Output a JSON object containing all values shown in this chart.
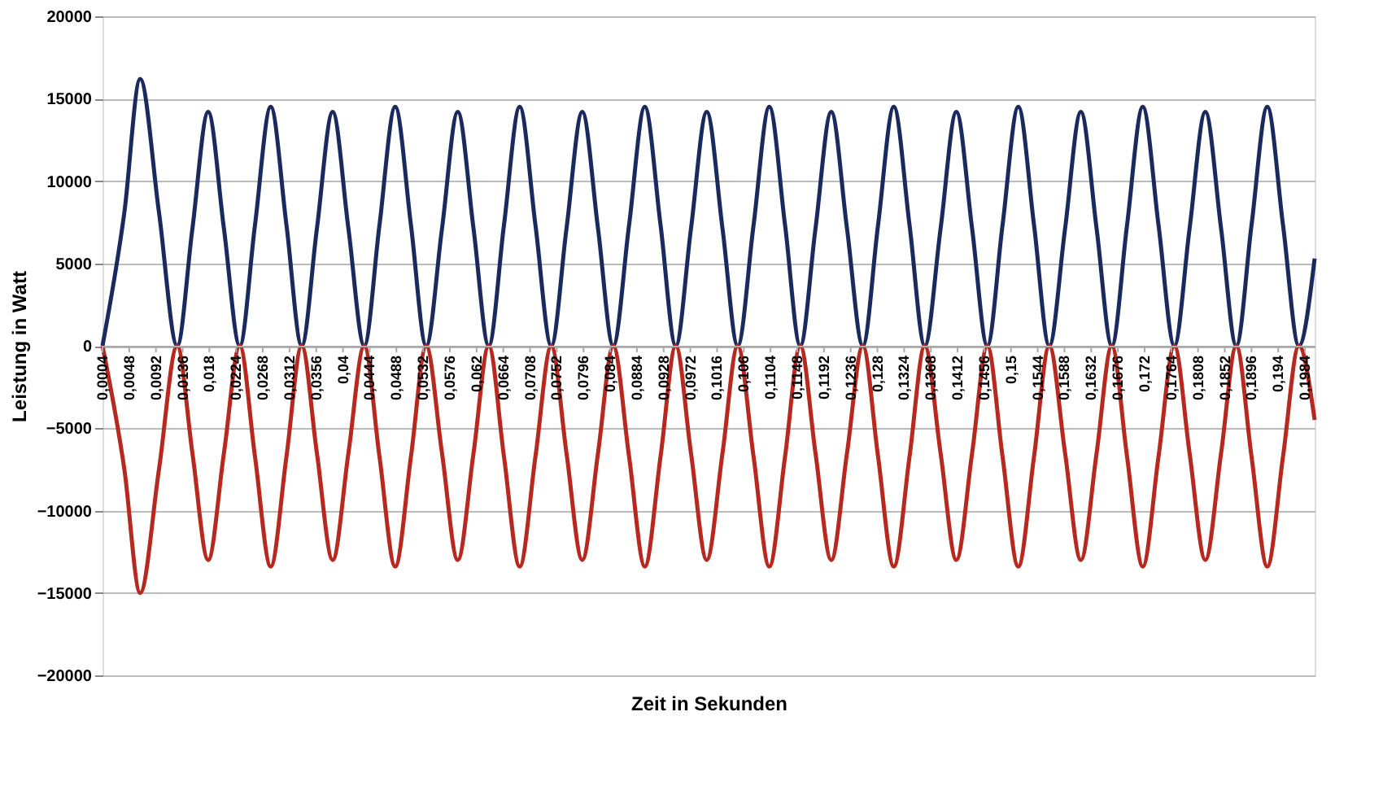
{
  "chart_data": {
    "type": "line",
    "xlabel": "Zeit in Sekunden",
    "ylabel": "Leistung in Watt",
    "x": [
      0.0004,
      0.004,
      0.0066,
      0.0097,
      0.0127,
      0.0152,
      0.0178,
      0.0204,
      0.023,
      0.0255,
      0.0281,
      0.0307,
      0.0332,
      0.0357,
      0.0383,
      0.0409,
      0.0435,
      0.046,
      0.0486,
      0.0512,
      0.0537,
      0.0563,
      0.0589,
      0.0615,
      0.064,
      0.0665,
      0.0691,
      0.0717,
      0.0743,
      0.0768,
      0.0794,
      0.082,
      0.0845,
      0.0871,
      0.0897,
      0.0923,
      0.0948,
      0.0973,
      0.0999,
      0.1025,
      0.105,
      0.1076,
      0.1102,
      0.1128,
      0.1153,
      0.1178,
      0.1204,
      0.123,
      0.1256,
      0.1281,
      0.1307,
      0.1333,
      0.1358,
      0.1384,
      0.141,
      0.1436,
      0.1461,
      0.1486,
      0.1512,
      0.1538,
      0.1563,
      0.1589,
      0.1615,
      0.1641,
      0.1666,
      0.1691,
      0.1717,
      0.1743,
      0.1769,
      0.1794,
      0.182,
      0.1846,
      0.1871,
      0.1896,
      0.1922,
      0.1948,
      0.1974,
      0.2
    ],
    "series": [
      {
        "color": "#1b2a5e",
        "values": [
          0,
          8100,
          16200,
          8100,
          0,
          7100,
          14200,
          7100,
          0,
          7300,
          14500,
          7300,
          0,
          7100,
          14200,
          7100,
          0,
          7300,
          14500,
          7300,
          0,
          7100,
          14200,
          7100,
          0,
          7300,
          14500,
          7300,
          0,
          7100,
          14200,
          7100,
          0,
          7300,
          14500,
          7300,
          0,
          7100,
          14200,
          7100,
          0,
          7300,
          14500,
          7300,
          0,
          7100,
          14200,
          7100,
          0,
          7300,
          14500,
          7300,
          0,
          7100,
          14200,
          7100,
          0,
          7300,
          14500,
          7300,
          0,
          7100,
          14200,
          7100,
          0,
          7300,
          14500,
          7300,
          0,
          7100,
          14200,
          7100,
          0,
          7300,
          14500,
          7300,
          0,
          5300
        ]
      },
      {
        "color": "#b7281e",
        "values": [
          0,
          -7500,
          -15000,
          -7500,
          0,
          -6500,
          -13000,
          -6500,
          0,
          -6700,
          -13400,
          -6700,
          0,
          -6500,
          -13000,
          -6500,
          0,
          -6700,
          -13400,
          -6700,
          0,
          -6500,
          -13000,
          -6500,
          0,
          -6700,
          -13400,
          -6700,
          0,
          -6500,
          -13000,
          -6500,
          0,
          -6700,
          -13400,
          -6700,
          0,
          -6500,
          -13000,
          -6500,
          0,
          -6700,
          -13400,
          -6700,
          0,
          -6500,
          -13000,
          -6500,
          0,
          -6700,
          -13400,
          -6700,
          0,
          -6500,
          -13000,
          -6500,
          0,
          -6700,
          -13400,
          -6700,
          0,
          -6500,
          -13000,
          -6500,
          0,
          -6700,
          -13400,
          -6700,
          0,
          -6500,
          -13000,
          -6500,
          0,
          -6700,
          -13400,
          -6700,
          0,
          -4500
        ]
      }
    ],
    "xlim": [
      0.0004,
      0.2
    ],
    "xticks": [
      {
        "value": 0.0004,
        "label": "0,0004"
      },
      {
        "value": 0.0048,
        "label": "0,0048"
      },
      {
        "value": 0.0092,
        "label": "0,0092"
      },
      {
        "value": 0.0136,
        "label": "0,0136"
      },
      {
        "value": 0.018,
        "label": "0,018"
      },
      {
        "value": 0.0224,
        "label": "0,0224"
      },
      {
        "value": 0.0268,
        "label": "0,0268"
      },
      {
        "value": 0.0312,
        "label": "0,0312"
      },
      {
        "value": 0.0356,
        "label": "0,0356"
      },
      {
        "value": 0.04,
        "label": "0,04"
      },
      {
        "value": 0.0444,
        "label": "0,0444"
      },
      {
        "value": 0.0488,
        "label": "0,0488"
      },
      {
        "value": 0.0532,
        "label": "0,0532"
      },
      {
        "value": 0.0576,
        "label": "0,0576"
      },
      {
        "value": 0.062,
        "label": "0,062"
      },
      {
        "value": 0.0664,
        "label": "0,0664"
      },
      {
        "value": 0.0708,
        "label": "0,0708"
      },
      {
        "value": 0.0752,
        "label": "0,0752"
      },
      {
        "value": 0.0796,
        "label": "0,0796"
      },
      {
        "value": 0.084,
        "label": "0,084"
      },
      {
        "value": 0.0884,
        "label": "0,0884"
      },
      {
        "value": 0.0928,
        "label": "0,0928"
      },
      {
        "value": 0.0972,
        "label": "0,0972"
      },
      {
        "value": 0.1016,
        "label": "0,1016"
      },
      {
        "value": 0.106,
        "label": "0,106"
      },
      {
        "value": 0.1104,
        "label": "0,1104"
      },
      {
        "value": 0.1148,
        "label": "0,1148"
      },
      {
        "value": 0.1192,
        "label": "0,1192"
      },
      {
        "value": 0.1236,
        "label": "0,1236"
      },
      {
        "value": 0.128,
        "label": "0,128"
      },
      {
        "value": 0.1324,
        "label": "0,1324"
      },
      {
        "value": 0.1368,
        "label": "0,1368"
      },
      {
        "value": 0.1412,
        "label": "0,1412"
      },
      {
        "value": 0.1456,
        "label": "0,1456"
      },
      {
        "value": 0.15,
        "label": "0,15"
      },
      {
        "value": 0.1544,
        "label": "0,1544"
      },
      {
        "value": 0.1588,
        "label": "0,1588"
      },
      {
        "value": 0.1632,
        "label": "0,1632"
      },
      {
        "value": 0.1676,
        "label": "0,1676"
      },
      {
        "value": 0.172,
        "label": "0,172"
      },
      {
        "value": 0.1764,
        "label": "0,1764"
      },
      {
        "value": 0.1808,
        "label": "0,1808"
      },
      {
        "value": 0.1852,
        "label": "0,1852"
      },
      {
        "value": 0.1896,
        "label": "0,1896"
      },
      {
        "value": 0.194,
        "label": "0,194"
      },
      {
        "value": 0.1984,
        "label": "0,1984"
      }
    ],
    "ylim": [
      -20000,
      20000
    ],
    "yticks": [
      -20000,
      -15000,
      -10000,
      -5000,
      0,
      5000,
      10000,
      15000,
      20000
    ],
    "grid": "y",
    "line_style": "solid",
    "marker": "none"
  }
}
